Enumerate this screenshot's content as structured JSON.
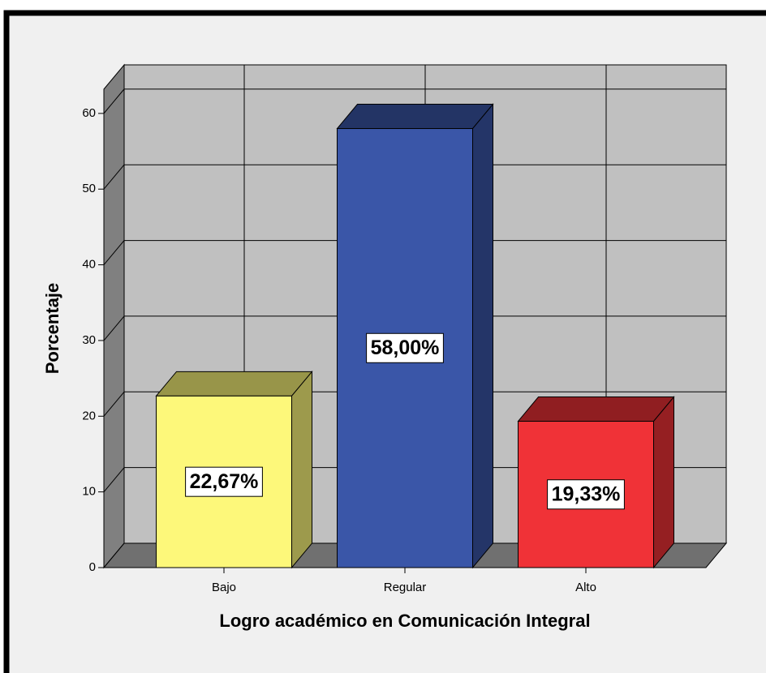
{
  "chart_data": {
    "type": "bar3d",
    "categories": [
      "Bajo",
      "Regular",
      "Alto"
    ],
    "values": [
      22.67,
      58.0,
      19.33
    ],
    "value_labels": [
      "22,67%",
      "58,00%",
      "19,33%"
    ],
    "colors": [
      "#fdf87a",
      "#3a56a8",
      "#f03237"
    ],
    "ylabel": "Porcentaje",
    "xlabel": "Logro académico en Comunicación Integral",
    "ylim": [
      0,
      63.2
    ],
    "yticks": [
      0,
      10,
      20,
      30,
      40,
      50,
      60
    ],
    "grid": true
  }
}
